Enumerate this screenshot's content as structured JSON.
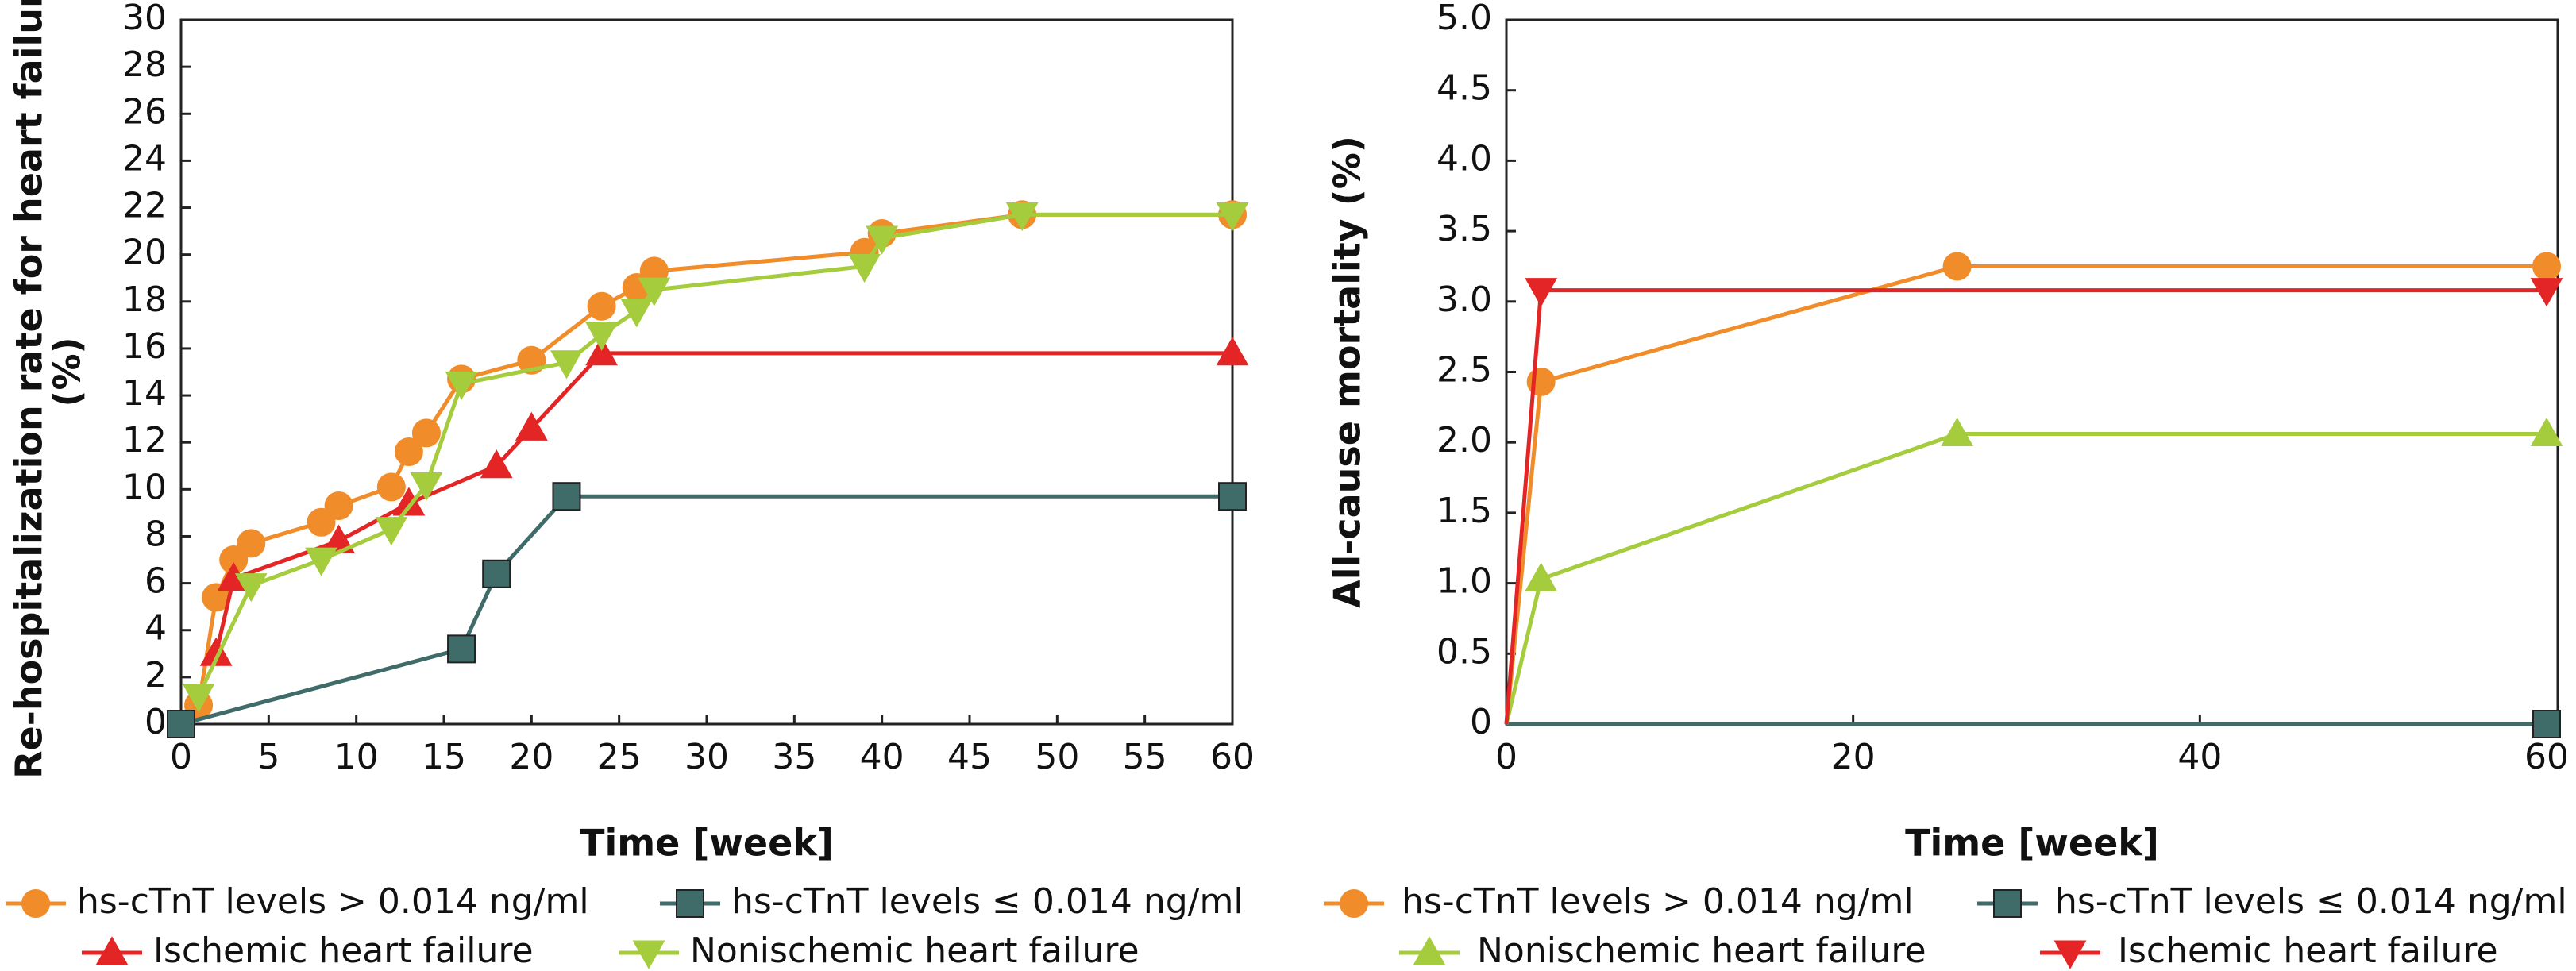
{
  "chart_data": [
    {
      "type": "line",
      "ylabel": [
        "Re-hospitalization rate for heart failure",
        "(%)"
      ],
      "xlabel": "Time [week]",
      "xlim": [
        0,
        60
      ],
      "xticks": [
        0,
        5,
        10,
        15,
        20,
        25,
        30,
        35,
        40,
        45,
        50,
        55,
        60
      ],
      "ylim": [
        0,
        30
      ],
      "yticks": [
        0,
        2,
        4,
        6,
        8,
        10,
        12,
        14,
        16,
        18,
        20,
        22,
        24,
        26,
        28,
        30
      ],
      "series": [
        {
          "name": "hs-cTnT levels > 0.014 ng/ml",
          "color": "#f08c2a",
          "marker": "circle",
          "x": [
            1,
            2,
            3,
            4,
            8,
            9,
            12,
            13,
            14,
            16,
            20,
            24,
            26,
            27,
            39,
            40,
            48,
            60
          ],
          "values": [
            0.8,
            5.4,
            7.0,
            7.7,
            8.6,
            9.3,
            10.1,
            11.6,
            12.4,
            14.7,
            15.5,
            17.8,
            18.6,
            19.3,
            20.1,
            20.9,
            21.7,
            21.7
          ]
        },
        {
          "name": "hs-cTnT levels ≤ 0.014 ng/ml",
          "color": "#3f6b69",
          "marker": "square",
          "x": [
            0,
            16,
            18,
            22,
            60
          ],
          "values": [
            0,
            3.2,
            6.4,
            9.7,
            9.7
          ]
        },
        {
          "name": "Ischemic heart failure",
          "color": "#e32526",
          "marker": "triangle-up",
          "x": [
            2,
            3,
            9,
            13,
            18,
            20,
            24,
            60
          ],
          "values": [
            3.0,
            6.2,
            7.8,
            9.4,
            11.0,
            12.6,
            15.8,
            15.8
          ]
        },
        {
          "name": "Nonischemic heart failure",
          "color": "#a4cc3c",
          "marker": "triangle-down",
          "x": [
            1,
            4,
            8,
            12,
            14,
            16,
            22,
            24,
            26,
            27,
            39,
            40,
            48,
            60
          ],
          "values": [
            1.2,
            5.9,
            7.0,
            8.3,
            10.2,
            14.5,
            15.4,
            16.6,
            17.6,
            18.5,
            19.5,
            20.7,
            21.7,
            21.7
          ]
        }
      ]
    },
    {
      "type": "line",
      "ylabel": [
        "All-cause mortality (%)"
      ],
      "xlabel": "Time [week]",
      "xlim": [
        0,
        60
      ],
      "xticks": [
        0,
        20,
        40,
        60
      ],
      "ylim": [
        0,
        5
      ],
      "yticks": [
        0,
        0.5,
        {
          "value": 1,
          "label": "1.0"
        },
        1.5,
        {
          "value": 2,
          "label": "2.0"
        },
        2.5,
        {
          "value": 3,
          "label": "3.0"
        },
        3.5,
        {
          "value": 4,
          "label": "4.0"
        },
        4.5,
        {
          "value": 5,
          "label": "5.0"
        }
      ],
      "series": [
        {
          "name": "hs-cTnT levels > 0.014 ng/ml",
          "color": "#f08c2a",
          "marker": "circle",
          "x": [
            0,
            2,
            26,
            60
          ],
          "values": [
            0,
            2.43,
            3.25,
            3.25
          ]
        },
        {
          "name": "hs-cTnT levels ≤ 0.014 ng/ml",
          "color": "#3f6b69",
          "marker": "square",
          "x": [
            0,
            60
          ],
          "values": [
            0,
            0
          ]
        },
        {
          "name": "Nonischemic heart failure",
          "color": "#a4cc3c",
          "marker": "triangle-up",
          "x": [
            0,
            2,
            26,
            60
          ],
          "values": [
            0,
            1.03,
            2.06,
            2.06
          ]
        },
        {
          "name": "Ischemic heart failure",
          "color": "#e32526",
          "marker": "triangle-down",
          "x": [
            0,
            2,
            60
          ],
          "values": [
            0,
            3.08,
            3.08
          ]
        }
      ]
    }
  ]
}
